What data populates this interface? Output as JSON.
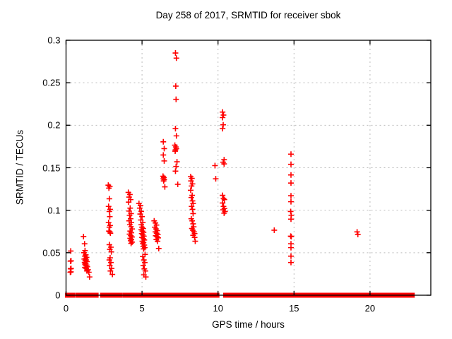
{
  "colors": {
    "background": "#ffffff",
    "border": "#000000",
    "grid": "#bbbbbb",
    "text": "#000000",
    "marker": "#ff0000"
  },
  "chart_data": {
    "type": "scatter",
    "title": "Day 258 of 2017, SRMTID for receiver sbok",
    "xlabel": "GPS time / hours",
    "ylabel": "SRMTID / TECUs",
    "xlim": [
      0,
      24
    ],
    "ylim": [
      0,
      0.3
    ],
    "grid": true,
    "legend": "none",
    "xticks": {
      "values": [
        0,
        5,
        10,
        15,
        20
      ],
      "labels": [
        "0",
        "5",
        "10",
        "15",
        "20"
      ]
    },
    "yticks": {
      "values": [
        0,
        0.05,
        0.1,
        0.15,
        0.2,
        0.25,
        0.3
      ],
      "labels": [
        "0",
        "0.05",
        "0.1",
        "0.15",
        "0.2",
        "0.25",
        "0.3"
      ]
    },
    "marker": {
      "shape": "plus",
      "color": "#ff0000",
      "size": 8,
      "stroke_width": 1.6
    },
    "baseline_band": {
      "y": 0,
      "note": "dense overlapping markers at y=0",
      "segments": [
        [
          0.02,
          0.5
        ],
        [
          0.7,
          2.05
        ],
        [
          2.33,
          3.64
        ],
        [
          3.83,
          4.14
        ],
        [
          4.29,
          4.42
        ],
        [
          4.54,
          4.7
        ],
        [
          4.88,
          6.43
        ],
        [
          6.59,
          10.0
        ],
        [
          10.43,
          14.9
        ],
        [
          15.08,
          22.85
        ]
      ]
    },
    "series": [
      {
        "name": "SRMTID",
        "points": [
          [
            0.28,
            0.027
          ],
          [
            0.32,
            0.0275
          ],
          [
            0.3,
            0.031
          ],
          [
            0.33,
            0.0315
          ],
          [
            0.29,
            0.04
          ],
          [
            0.33,
            0.0405
          ],
          [
            0.31,
            0.052
          ],
          [
            1.15,
            0.069
          ],
          [
            1.22,
            0.0605
          ],
          [
            1.25,
            0.0525
          ],
          [
            1.18,
            0.05
          ],
          [
            1.3,
            0.0475
          ],
          [
            1.24,
            0.046
          ],
          [
            1.35,
            0.0445
          ],
          [
            1.28,
            0.043
          ],
          [
            1.2,
            0.0425
          ],
          [
            1.32,
            0.0415
          ],
          [
            1.26,
            0.0405
          ],
          [
            1.38,
            0.0395
          ],
          [
            1.22,
            0.0385
          ],
          [
            1.3,
            0.0375
          ],
          [
            1.25,
            0.0365
          ],
          [
            1.35,
            0.0355
          ],
          [
            1.28,
            0.0345
          ],
          [
            1.4,
            0.0335
          ],
          [
            1.24,
            0.0325
          ],
          [
            1.33,
            0.0315
          ],
          [
            1.45,
            0.03
          ],
          [
            1.38,
            0.0285
          ],
          [
            1.5,
            0.027
          ],
          [
            1.55,
            0.0215
          ],
          [
            2.78,
            0.1295
          ],
          [
            2.88,
            0.128
          ],
          [
            2.82,
            0.126
          ],
          [
            2.85,
            0.1135
          ],
          [
            2.8,
            0.1045
          ],
          [
            2.9,
            0.101
          ],
          [
            2.85,
            0.0985
          ],
          [
            2.88,
            0.0925
          ],
          [
            2.8,
            0.0855
          ],
          [
            2.9,
            0.082
          ],
          [
            2.85,
            0.08
          ],
          [
            2.82,
            0.0755
          ],
          [
            2.88,
            0.0745
          ],
          [
            2.92,
            0.073
          ],
          [
            2.85,
            0.0595
          ],
          [
            2.95,
            0.0565
          ],
          [
            2.88,
            0.054
          ],
          [
            2.98,
            0.051
          ],
          [
            2.9,
            0.044
          ],
          [
            2.85,
            0.0415
          ],
          [
            2.95,
            0.0385
          ],
          [
            2.88,
            0.035
          ],
          [
            3.0,
            0.0315
          ],
          [
            2.92,
            0.0285
          ],
          [
            3.05,
            0.0245
          ],
          [
            4.1,
            0.121
          ],
          [
            4.2,
            0.1185
          ],
          [
            4.15,
            0.1155
          ],
          [
            4.25,
            0.1125
          ],
          [
            4.12,
            0.1095
          ],
          [
            4.22,
            0.1025
          ],
          [
            4.15,
            0.099
          ],
          [
            4.28,
            0.096
          ],
          [
            4.18,
            0.094
          ],
          [
            4.25,
            0.09
          ],
          [
            4.15,
            0.0875
          ],
          [
            4.3,
            0.0855
          ],
          [
            4.2,
            0.083
          ],
          [
            4.28,
            0.0805
          ],
          [
            4.35,
            0.078
          ],
          [
            4.22,
            0.0755
          ],
          [
            4.3,
            0.0735
          ],
          [
            4.18,
            0.0718
          ],
          [
            4.26,
            0.07
          ],
          [
            4.34,
            0.0685
          ],
          [
            4.22,
            0.067
          ],
          [
            4.3,
            0.0655
          ],
          [
            4.25,
            0.064
          ],
          [
            4.35,
            0.0625
          ],
          [
            4.28,
            0.061
          ],
          [
            4.8,
            0.108
          ],
          [
            4.9,
            0.1055
          ],
          [
            4.85,
            0.1025
          ],
          [
            4.95,
            0.0985
          ],
          [
            4.88,
            0.0955
          ],
          [
            5.0,
            0.0925
          ],
          [
            4.92,
            0.0885
          ],
          [
            5.05,
            0.0855
          ],
          [
            4.95,
            0.083
          ],
          [
            5.0,
            0.08
          ],
          [
            5.08,
            0.0785
          ],
          [
            4.95,
            0.077
          ],
          [
            5.02,
            0.0755
          ],
          [
            5.1,
            0.074
          ],
          [
            4.98,
            0.0725
          ],
          [
            5.05,
            0.071
          ],
          [
            5.12,
            0.0695
          ],
          [
            5.0,
            0.068
          ],
          [
            5.08,
            0.0665
          ],
          [
            5.15,
            0.065
          ],
          [
            5.02,
            0.0635
          ],
          [
            5.1,
            0.062
          ],
          [
            5.05,
            0.0605
          ],
          [
            5.15,
            0.059
          ],
          [
            5.08,
            0.0575
          ],
          [
            5.18,
            0.056
          ],
          [
            5.1,
            0.0545
          ],
          [
            5.2,
            0.048
          ],
          [
            5.05,
            0.0455
          ],
          [
            5.12,
            0.0415
          ],
          [
            5.18,
            0.0385
          ],
          [
            5.08,
            0.035
          ],
          [
            5.15,
            0.031
          ],
          [
            5.22,
            0.0285
          ],
          [
            5.12,
            0.024
          ],
          [
            5.25,
            0.0215
          ],
          [
            5.8,
            0.0875
          ],
          [
            5.88,
            0.085
          ],
          [
            5.95,
            0.0825
          ],
          [
            5.84,
            0.08
          ],
          [
            5.92,
            0.078
          ],
          [
            6.0,
            0.076
          ],
          [
            5.88,
            0.0745
          ],
          [
            5.96,
            0.073
          ],
          [
            6.04,
            0.0715
          ],
          [
            5.9,
            0.07
          ],
          [
            5.98,
            0.069
          ],
          [
            6.06,
            0.0675
          ],
          [
            5.94,
            0.0655
          ],
          [
            6.02,
            0.0635
          ],
          [
            6.1,
            0.055
          ],
          [
            6.4,
            0.1805
          ],
          [
            6.46,
            0.1725
          ],
          [
            6.4,
            0.165
          ],
          [
            6.46,
            0.158
          ],
          [
            6.38,
            0.14
          ],
          [
            6.44,
            0.1385
          ],
          [
            6.4,
            0.137
          ],
          [
            6.46,
            0.136
          ],
          [
            6.42,
            0.1345
          ],
          [
            6.5,
            0.1275
          ],
          [
            7.2,
            0.285
          ],
          [
            7.26,
            0.279
          ],
          [
            7.22,
            0.246
          ],
          [
            7.24,
            0.2305
          ],
          [
            7.2,
            0.196
          ],
          [
            7.26,
            0.1875
          ],
          [
            7.16,
            0.1765
          ],
          [
            7.22,
            0.1745
          ],
          [
            7.26,
            0.1725
          ],
          [
            7.2,
            0.171
          ],
          [
            7.18,
            0.1695
          ],
          [
            7.3,
            0.157
          ],
          [
            7.24,
            0.1515
          ],
          [
            7.2,
            0.146
          ],
          [
            7.35,
            0.1305
          ],
          [
            8.2,
            0.1395
          ],
          [
            8.28,
            0.1375
          ],
          [
            8.22,
            0.1345
          ],
          [
            8.32,
            0.131
          ],
          [
            8.26,
            0.1285
          ],
          [
            8.2,
            0.1235
          ],
          [
            8.3,
            0.1175
          ],
          [
            8.24,
            0.115
          ],
          [
            8.32,
            0.111
          ],
          [
            8.36,
            0.108
          ],
          [
            8.26,
            0.1045
          ],
          [
            8.32,
            0.101
          ],
          [
            8.36,
            0.096
          ],
          [
            8.24,
            0.09
          ],
          [
            8.3,
            0.0875
          ],
          [
            8.36,
            0.084
          ],
          [
            8.4,
            0.0805
          ],
          [
            8.28,
            0.0785
          ],
          [
            8.34,
            0.0765
          ],
          [
            8.42,
            0.0745
          ],
          [
            8.46,
            0.0725
          ],
          [
            8.36,
            0.0705
          ],
          [
            8.46,
            0.068
          ],
          [
            8.5,
            0.0635
          ],
          [
            9.8,
            0.1525
          ],
          [
            9.85,
            0.137
          ],
          [
            10.3,
            0.2155
          ],
          [
            10.36,
            0.212
          ],
          [
            10.3,
            0.209
          ],
          [
            10.34,
            0.2005
          ],
          [
            10.3,
            0.196
          ],
          [
            10.4,
            0.1595
          ],
          [
            10.34,
            0.1565
          ],
          [
            10.4,
            0.1545
          ],
          [
            10.3,
            0.1175
          ],
          [
            10.36,
            0.114
          ],
          [
            10.42,
            0.1125
          ],
          [
            10.3,
            0.1085
          ],
          [
            10.36,
            0.1045
          ],
          [
            10.42,
            0.102
          ],
          [
            10.34,
            0.1005
          ],
          [
            10.46,
            0.0985
          ],
          [
            10.4,
            0.0965
          ],
          [
            13.7,
            0.0765
          ],
          [
            14.8,
            0.166
          ],
          [
            14.8,
            0.154
          ],
          [
            14.8,
            0.1415
          ],
          [
            14.8,
            0.132
          ],
          [
            14.8,
            0.117
          ],
          [
            14.8,
            0.11
          ],
          [
            14.78,
            0.0985
          ],
          [
            14.82,
            0.094
          ],
          [
            14.8,
            0.0895
          ],
          [
            14.78,
            0.0695
          ],
          [
            14.82,
            0.069
          ],
          [
            14.8,
            0.0605
          ],
          [
            14.8,
            0.056
          ],
          [
            14.8,
            0.046
          ],
          [
            14.8,
            0.0385
          ],
          [
            19.15,
            0.0745
          ],
          [
            19.2,
            0.0715
          ]
        ]
      }
    ]
  }
}
